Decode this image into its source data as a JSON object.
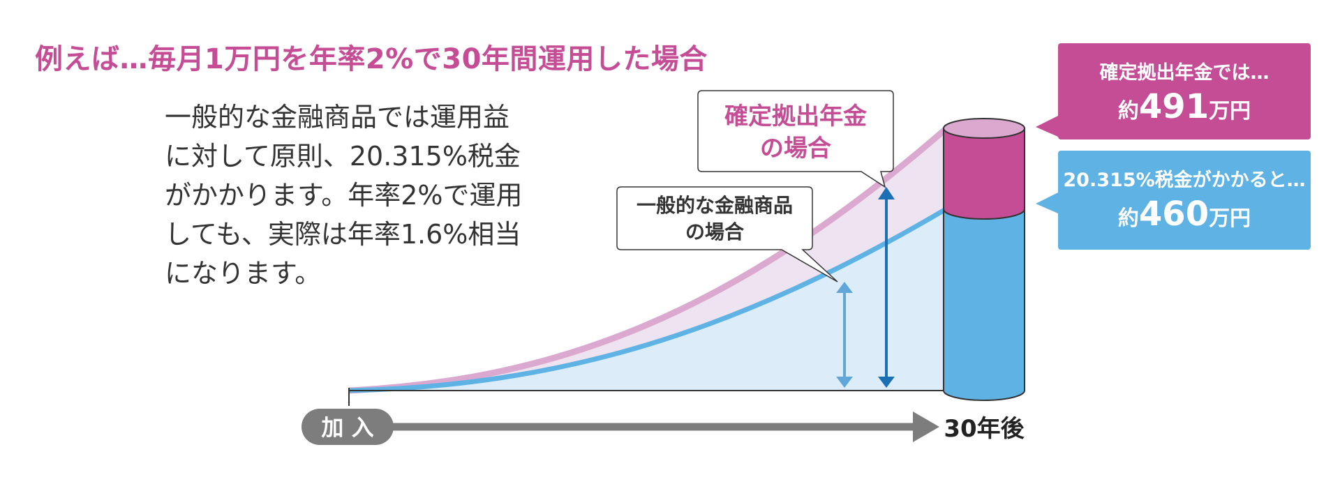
{
  "headline": "例えば…毎月1万円を年率2%で30年間運用した場合",
  "description": [
    "一般的な金融商品では運用益",
    "に対して原則、20.315%税金",
    "がかかります。年率2%で運用",
    "しても、実際は年率1.6%相当",
    "になります。"
  ],
  "callouts": {
    "dc": [
      "確定拠出年金",
      "の場合"
    ],
    "general": [
      "一般的な金融商品",
      "の場合"
    ]
  },
  "results": {
    "dc": {
      "label": "確定拠出年金では…",
      "prefix": "約",
      "value": "491",
      "unit": "万円"
    },
    "taxed": {
      "label": "20.315%税金がかかると…",
      "prefix": "約",
      "value": "460",
      "unit": "万円"
    }
  },
  "timeline": {
    "start": "加 入",
    "end": "30年後"
  },
  "colors": {
    "pink": "#c44d96",
    "pink_light": "#dba8cf",
    "blue": "#5fb3e4",
    "blue_dark": "#1a6fb5",
    "gray": "#7d7d7d"
  }
}
